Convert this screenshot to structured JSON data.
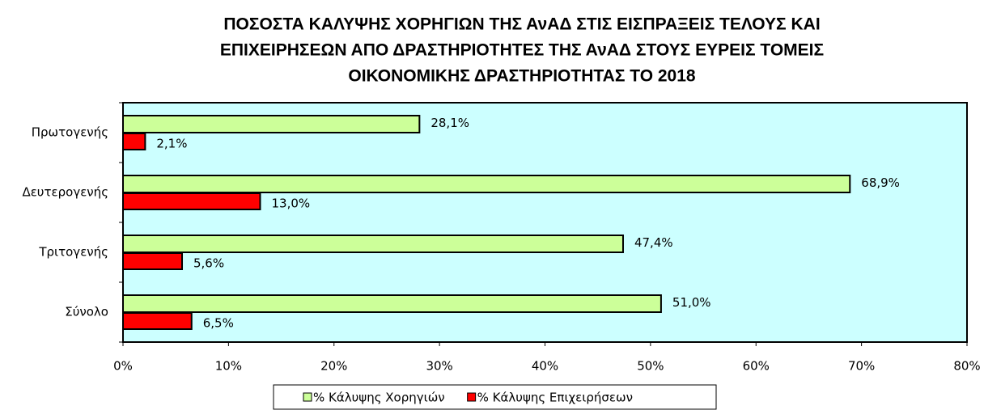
{
  "chart_data": {
    "type": "barh",
    "title": [
      "ΠΟΣΟΣΤΑ ΚΑΛΥΨΗΣ ΧΟΡΗΓΙΩΝ ΤΗΣ ΑνΑΔ ΣΤΙΣ ΕΙΣΠΡΑΞΕΙΣ ΤΕΛΟΥΣ ΚΑΙ",
      "ΕΠΙΧΕΙΡΗΣΕΩΝ ΑΠΟ ΔΡΑΣΤΗΡΙΟΤΗΤΕΣ ΤΗΣ ΑνΑΔ ΣΤΟΥΣ ΕΥΡΕΙΣ ΤΟΜΕΙΣ",
      "ΟΙΚΟΝΟΜΙΚΗΣ ΔΡΑΣΤΗΡΙΟΤΗΤΑΣ ΤΟ 2018"
    ],
    "categories": [
      "Πρωτογενής",
      "Δευτερογενής",
      "Τριτογενής",
      "Σύνολο"
    ],
    "series": [
      {
        "name": "% Κάλυψης Χορηγιών",
        "color": "#ccff99",
        "values": [
          28.1,
          68.9,
          47.4,
          51.0
        ],
        "value_labels": [
          "28,1%",
          "68,9%",
          "47,4%",
          "51,0%"
        ]
      },
      {
        "name": "% Κάλυψης Επιχειρήσεων",
        "color": "#ff0000",
        "values": [
          2.1,
          13.0,
          5.6,
          6.5
        ],
        "value_labels": [
          "2,1%",
          "13,0%",
          "5,6%",
          "6,5%"
        ]
      }
    ],
    "xlim": [
      0,
      80
    ],
    "xticks": [
      {
        "value": 0,
        "label": "0%"
      },
      {
        "value": 10,
        "label": "10%"
      },
      {
        "value": 20,
        "label": "20%"
      },
      {
        "value": 30,
        "label": "30%"
      },
      {
        "value": 40,
        "label": "40%"
      },
      {
        "value": 50,
        "label": "50%"
      },
      {
        "value": 60,
        "label": "60%"
      },
      {
        "value": 70,
        "label": "70%"
      },
      {
        "value": 80,
        "label": "80%"
      }
    ],
    "plot_background": "#ccffff",
    "legend": "bottom"
  }
}
